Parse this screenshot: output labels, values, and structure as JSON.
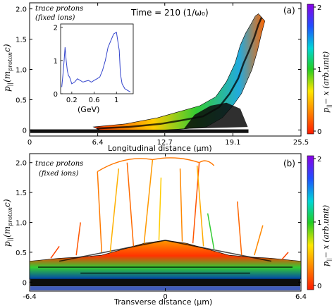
{
  "chart_data": [
    {
      "type": "scatter",
      "panel": "(a)",
      "annotation": [
        "trace protons",
        "(fixed ions)"
      ],
      "time_label": "Time = 210 (1/ω₀)",
      "xlabel": "Longitudinal distance (μm)",
      "ylabel": "p∥(m_proton c)",
      "ylabel_main": "p",
      "ylabel_sub": "||",
      "ylabel_paren": "(m",
      "ylabel_paren_sub": "proton",
      "ylabel_close": "c)",
      "xticks": [
        "0",
        "6.4",
        "12.7",
        "19.1",
        "25.5"
      ],
      "xlim": [
        0,
        25.5
      ],
      "yticks": [
        "0",
        "0.5",
        "1.0",
        "1.5",
        "2.0"
      ],
      "ylim": [
        -0.1,
        2.1
      ],
      "color_scale": {
        "label": "p∥ − x (arb.unit)",
        "label_main": "p",
        "label_sub": "||",
        "label_rest": "− x (arb.unit)",
        "ticks": [
          "0",
          "1",
          "2"
        ],
        "range": [
          0,
          2
        ]
      },
      "phase_space_ridge": {
        "x": [
          6.0,
          9.0,
          12.0,
          14.0,
          16.0,
          17.5,
          18.5,
          19.3,
          19.8,
          20.3,
          20.8,
          21.2,
          21.5
        ],
        "y_upper": [
          0.05,
          0.1,
          0.2,
          0.3,
          0.4,
          0.55,
          0.8,
          1.1,
          1.4,
          1.6,
          1.75,
          1.88,
          1.92
        ],
        "y_lower": [
          0.0,
          0.0,
          0.0,
          0.02,
          0.05,
          0.2,
          0.4,
          0.6,
          0.8,
          1.0,
          1.3,
          1.6,
          1.8
        ]
      },
      "inset": {
        "type": "line",
        "xlabel": "(GeV)",
        "xticks": [
          "0.2",
          "0.6",
          "1"
        ],
        "xlim": [
          0,
          1.3
        ],
        "yticks": [
          "0",
          "1",
          "2"
        ],
        "ylim": [
          0,
          2.1
        ],
        "series": [
          {
            "color": "#3344cc",
            "x": [
              0.02,
              0.04,
              0.06,
              0.08,
              0.1,
              0.12,
              0.14,
              0.16,
              0.18,
              0.2,
              0.25,
              0.3,
              0.35,
              0.4,
              0.45,
              0.5,
              0.55,
              0.6,
              0.65,
              0.7,
              0.75,
              0.8,
              0.85,
              0.9,
              0.95,
              1.0,
              1.05,
              1.07,
              1.1,
              1.15,
              1.2,
              1.25
            ],
            "y": [
              0.2,
              0.55,
              0.95,
              1.4,
              1.0,
              0.7,
              0.55,
              0.5,
              0.4,
              0.3,
              0.35,
              0.45,
              0.4,
              0.35,
              0.38,
              0.4,
              0.35,
              0.4,
              0.45,
              0.5,
              0.7,
              1.0,
              1.4,
              1.6,
              1.8,
              1.85,
              1.3,
              0.6,
              0.3,
              0.15,
              0.1,
              0.05
            ]
          }
        ]
      }
    },
    {
      "type": "scatter",
      "panel": "(b)",
      "annotation": [
        "trace protons",
        "(fixed ions)"
      ],
      "xlabel": "Transverse distance (μm)",
      "ylabel": "p∥(m_proton c)",
      "ylabel_main": "p",
      "ylabel_sub": "||",
      "ylabel_paren": "(m",
      "ylabel_paren_sub": "proton",
      "ylabel_close": "c)",
      "xticks": [
        "-6.4",
        "0",
        "6.4"
      ],
      "xlim": [
        -6.4,
        6.4
      ],
      "yticks": [
        "0",
        "0.5",
        "1.0",
        "1.5",
        "2.0"
      ],
      "ylim": [
        -0.15,
        2.15
      ],
      "color_scale": {
        "label": "p∥ − x (arb.unit)",
        "label_main": "p",
        "label_sub": "||",
        "label_rest": "− x (arb.unit)",
        "ticks": [
          "0",
          "1",
          "2"
        ],
        "range": [
          0,
          2
        ]
      },
      "phase_space_envelope": {
        "x": [
          -6.4,
          -5.0,
          -4.0,
          -3.0,
          -2.0,
          -1.0,
          0.0,
          1.0,
          2.0,
          3.0,
          4.0,
          5.0,
          6.4
        ],
        "y_upper": [
          0.35,
          0.4,
          0.42,
          0.45,
          0.55,
          0.65,
          0.7,
          0.65,
          0.55,
          0.45,
          0.42,
          0.4,
          0.35
        ]
      }
    }
  ]
}
